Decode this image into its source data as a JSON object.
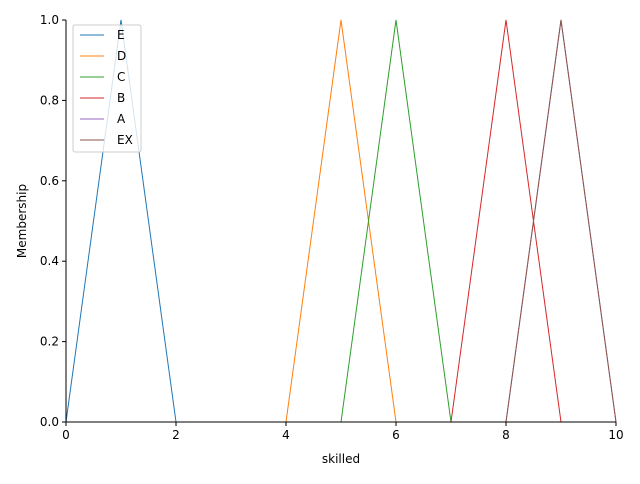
{
  "chart_data": {
    "type": "line",
    "title": "",
    "xlabel": "skilled",
    "ylabel": "Membership",
    "xlim": [
      0,
      10
    ],
    "ylim": [
      0,
      1.0
    ],
    "grid": false,
    "legend_position": "top-left",
    "x_ticks": [
      0,
      2,
      4,
      6,
      8,
      10
    ],
    "x_tick_labels": [
      "0",
      "2",
      "4",
      "6",
      "8",
      "10"
    ],
    "y_ticks": [
      0.0,
      0.2,
      0.4,
      0.6,
      0.8,
      1.0
    ],
    "y_tick_labels": [
      "0.0",
      "0.2",
      "0.4",
      "0.6",
      "0.8",
      "1.0"
    ],
    "series": [
      {
        "name": "E",
        "color": "#1f77b4",
        "x": [
          0,
          1,
          2,
          10
        ],
        "y": [
          0,
          1,
          0,
          0
        ]
      },
      {
        "name": "D",
        "color": "#ff7f0e",
        "x": [
          0,
          4,
          5,
          6,
          10
        ],
        "y": [
          0,
          0,
          1,
          0,
          0
        ]
      },
      {
        "name": "C",
        "color": "#2ca02c",
        "x": [
          0,
          5,
          6,
          7,
          10
        ],
        "y": [
          0,
          0,
          1,
          0,
          0
        ]
      },
      {
        "name": "B",
        "color": "#d62728",
        "x": [
          0,
          7,
          8,
          9,
          10
        ],
        "y": [
          0,
          0,
          1,
          0,
          0
        ]
      },
      {
        "name": "A",
        "color": "#9467bd",
        "x": [
          0,
          8,
          9,
          10
        ],
        "y": [
          0,
          0,
          1,
          0
        ]
      },
      {
        "name": "EX",
        "color": "#8c564b",
        "x": [
          0,
          8,
          9,
          10
        ],
        "y": [
          0,
          0,
          1,
          0
        ]
      }
    ]
  }
}
